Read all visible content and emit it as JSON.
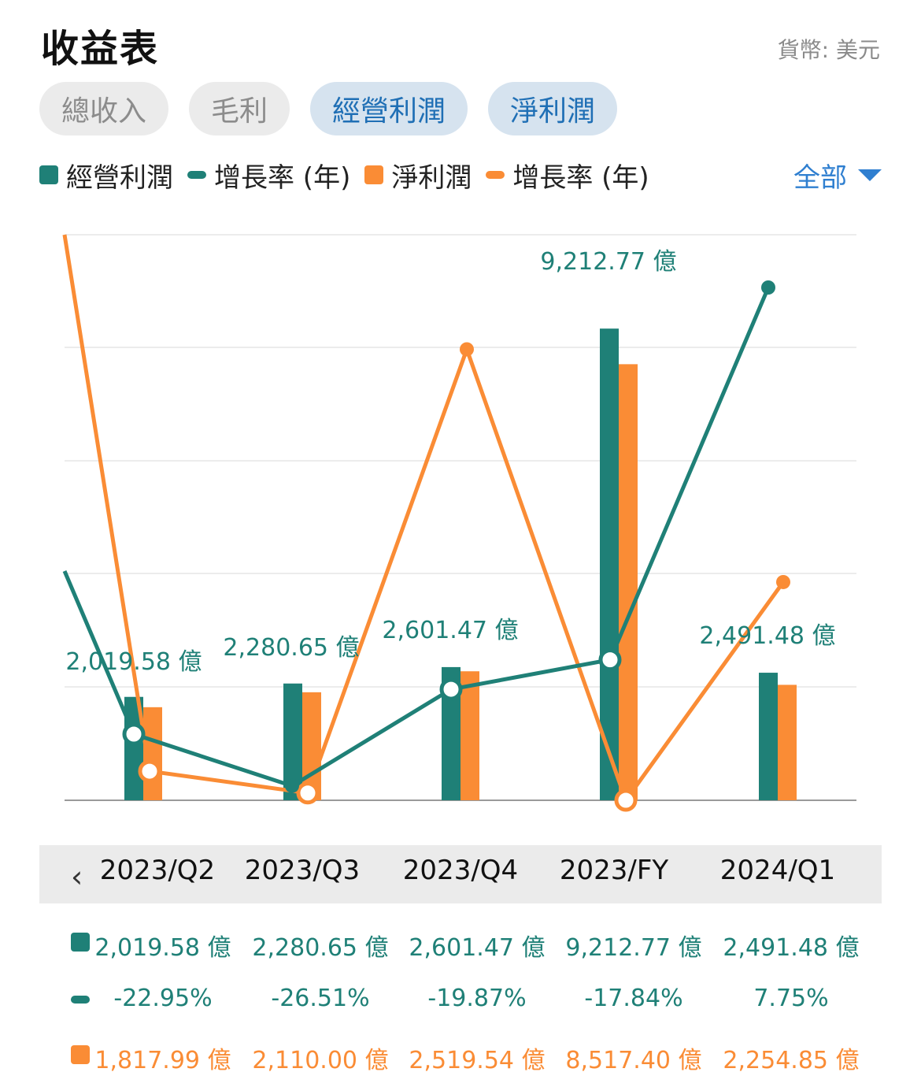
{
  "header": {
    "title": "收益表",
    "currency": "貨幣: 美元"
  },
  "tabs": [
    {
      "label": "總收入",
      "active": false
    },
    {
      "label": "毛利",
      "active": false
    },
    {
      "label": "經營利潤",
      "active": true
    },
    {
      "label": "淨利潤",
      "active": true
    }
  ],
  "legend": {
    "items": [
      {
        "label": "經營利潤",
        "shape": "box",
        "color": "#1f8077"
      },
      {
        "label": "增長率 (年)",
        "shape": "line",
        "color": "#1f8077"
      },
      {
        "label": "淨利潤",
        "shape": "box",
        "color": "#fa8c35"
      },
      {
        "label": "增長率 (年)",
        "shape": "line",
        "color": "#fa8c35"
      }
    ],
    "filter_label": "全部"
  },
  "colors": {
    "teal": "#1f8077",
    "orange": "#fa8c35",
    "accent": "#2f7fd0"
  },
  "chart_data": {
    "type": "bar",
    "categories": [
      "2023/Q2",
      "2023/Q3",
      "2023/Q4",
      "2023/FY",
      "2024/Q1"
    ],
    "unit": "億",
    "series": [
      {
        "name": "經營利潤",
        "type": "bar",
        "values": [
          2019.58,
          2280.65,
          2601.47,
          9212.77,
          2491.48
        ],
        "labels": [
          "2,019.58 億",
          "2,280.65 億",
          "2,601.47 億",
          "9,212.77 億",
          "2,491.48 億"
        ],
        "color": "#1f8077"
      },
      {
        "name": "淨利潤",
        "type": "bar",
        "values": [
          1817.99,
          2110.0,
          2519.54,
          8517.4,
          2254.85
        ],
        "labels": [
          "1,817.99 億",
          "2,110.00 億",
          "2,519.54 億",
          "8,517.40 億",
          "2,254.85 億"
        ],
        "color": "#fa8c35"
      },
      {
        "name": "增長率 (年)",
        "type": "line",
        "values": [
          -22.95,
          -26.51,
          -19.87,
          -17.84,
          7.75
        ],
        "labels": [
          "-22.95%",
          "-26.51%",
          "-19.87%",
          "-17.84%",
          "7.75%"
        ],
        "color": "#1f8077"
      },
      {
        "name": "增長率 (年)",
        "type": "line",
        "values": [
          -25.5,
          -27.0,
          3.5,
          -27.5,
          -12.5
        ],
        "color": "#fa8c35"
      }
    ],
    "grid": true
  },
  "table": {
    "prev_label": "‹"
  }
}
